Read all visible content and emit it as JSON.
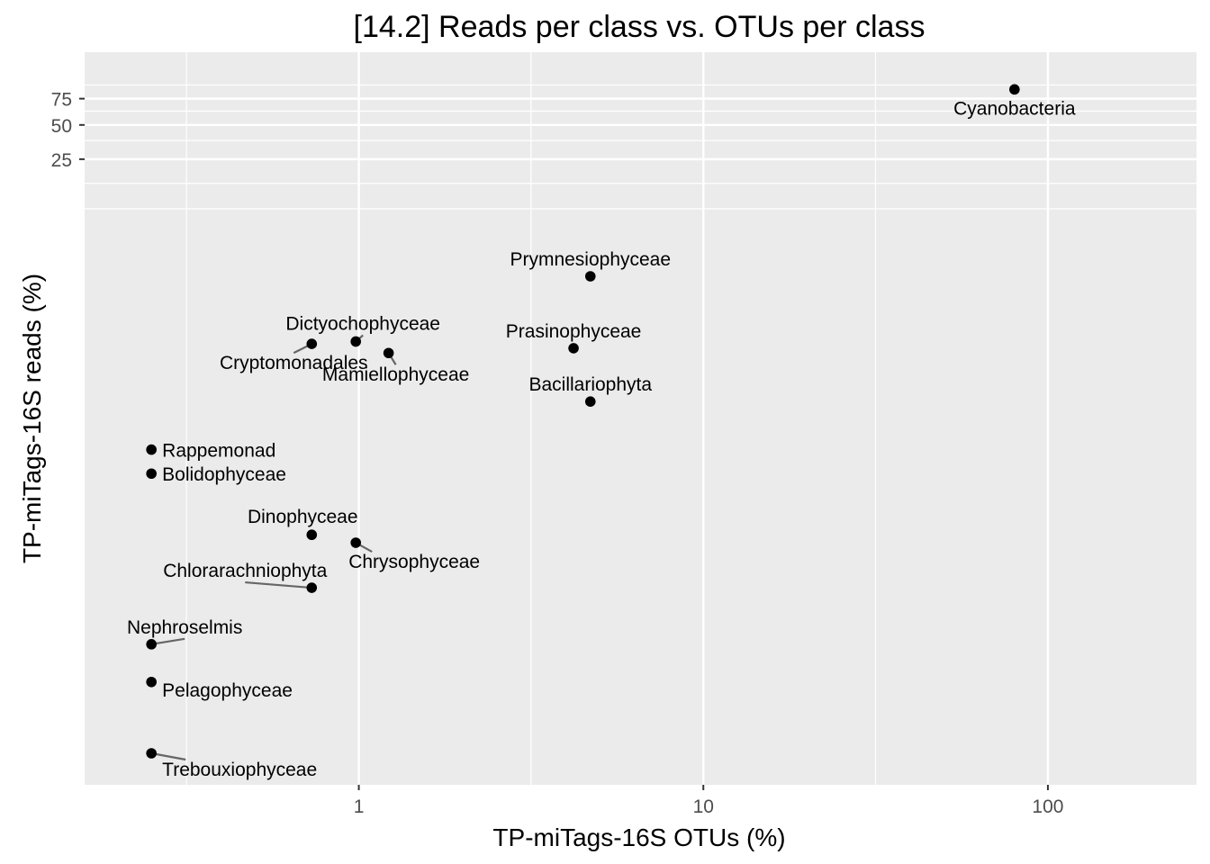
{
  "chart_data": {
    "type": "scatter",
    "title": "[14.2] Reads per class vs. OTUs per class",
    "xlabel": "TP-miTags-16S OTUs (%)",
    "ylabel": "TP-miTags-16S reads (%)",
    "x_scale": "log10",
    "y_scale": "sqrt",
    "xlim": [
      0.16,
      270
    ],
    "ylim": [
      0,
      100
    ],
    "x_ticks": [
      1,
      10,
      100
    ],
    "x_tick_labels": [
      "1",
      "10",
      "100"
    ],
    "y_ticks": [
      25,
      50,
      75
    ],
    "y_tick_labels": [
      "25",
      "50",
      "75"
    ],
    "grid": true,
    "legend": "none",
    "colors": {
      "panel_bg": "#ebebeb",
      "grid": "#ffffff",
      "point": "#000000",
      "segment": "#666666",
      "tick": "#333333",
      "tick_text": "#4d4d4d"
    },
    "points": [
      {
        "label": "Cyanobacteria",
        "x": 80,
        "y": 85
      },
      {
        "label": "Prymnesiophyceae",
        "x": 4.7,
        "y": 3.2
      },
      {
        "label": "Dictyochophyceae",
        "x": 0.98,
        "y": 0.9
      },
      {
        "label": "Cryptomonadales",
        "x": 0.73,
        "y": 0.86
      },
      {
        "label": "Mamiellophyceae",
        "x": 1.22,
        "y": 0.72
      },
      {
        "label": "Prasinophyceae",
        "x": 4.2,
        "y": 0.79
      },
      {
        "label": "Bacillariophyta",
        "x": 4.7,
        "y": 0.28
      },
      {
        "label": "Rappemonad",
        "x": 0.25,
        "y": 0.11
      },
      {
        "label": "Bolidophyceae",
        "x": 0.25,
        "y": 0.069
      },
      {
        "label": "Dinophyceae",
        "x": 0.73,
        "y": 0.021
      },
      {
        "label": "Chrysophyceae",
        "x": 0.98,
        "y": 0.018
      },
      {
        "label": "Chlorarachniophyta",
        "x": 0.73,
        "y": 0.0075
      },
      {
        "label": "Nephroselmis",
        "x": 0.25,
        "y": 0.0025
      },
      {
        "label": "Pelagophyceae",
        "x": 0.25,
        "y": 0.0012
      },
      {
        "label": "Trebouxiophyceae",
        "x": 0.25,
        "y": 0.0003
      }
    ]
  }
}
